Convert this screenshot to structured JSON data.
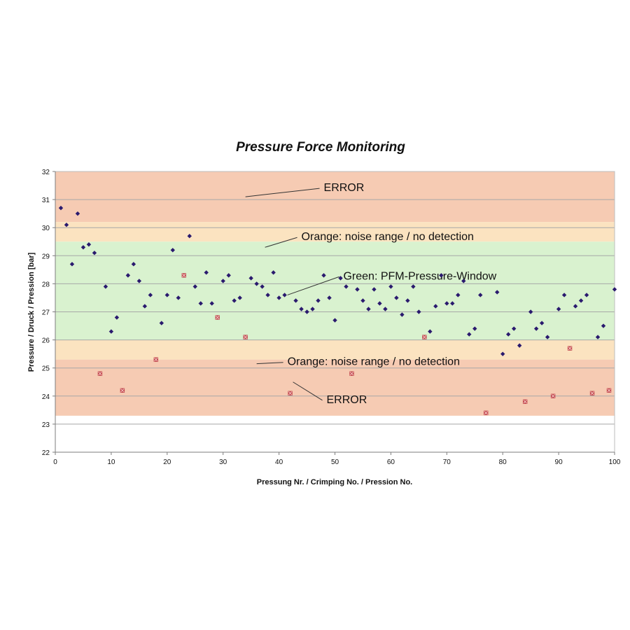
{
  "chart_data": {
    "type": "scatter",
    "title": "Pressure Force Monitoring",
    "xlabel": "Pressung Nr. / Crimping No. / Pression No.",
    "ylabel": "Pressure / Druck / Pression [bar]",
    "xlim": [
      0,
      100
    ],
    "ylim": [
      22,
      32
    ],
    "x_ticks": [
      0,
      10,
      20,
      30,
      40,
      50,
      60,
      70,
      80,
      90,
      100
    ],
    "y_ticks": [
      22,
      23,
      24,
      25,
      26,
      27,
      28,
      29,
      30,
      31,
      32
    ],
    "grid": true,
    "colors": {
      "ok_point": "#2a1a6e",
      "error_point": "#b8323c",
      "error_band": "#f6cbb3",
      "noise_band": "#fbe3c0",
      "window_band": "#d9f2cf",
      "plot_background": "#ffffff",
      "gridline": "#a8a8a8"
    },
    "bands": [
      {
        "name": "ERROR",
        "from": 30.2,
        "to": 32,
        "color": "#f6cbb3"
      },
      {
        "name": "Orange: noise range / no detection",
        "from": 29.5,
        "to": 30.2,
        "color": "#fbe3c0"
      },
      {
        "name": "Green: PFM-Pressure-Window",
        "from": 26,
        "to": 29.5,
        "color": "#d9f2cf"
      },
      {
        "name": "Orange: noise range / no detection",
        "from": 25.3,
        "to": 26,
        "color": "#fbe3c0"
      },
      {
        "name": "ERROR",
        "from": 23.3,
        "to": 25.3,
        "color": "#f6cbb3"
      }
    ],
    "annotations": [
      {
        "text": "ERROR",
        "at": [
          48,
          31.3
        ],
        "pointer_to": [
          34,
          31.1
        ]
      },
      {
        "text": "Orange:  noise range / no detection",
        "at": [
          44,
          29.55
        ],
        "pointer_to": [
          37.5,
          29.3
        ]
      },
      {
        "text": "Green: PFM-Pressure-Window",
        "at": [
          51.5,
          28.15
        ],
        "pointer_to": [
          41.5,
          27.6
        ]
      },
      {
        "text": "Orange:  noise range / no detection",
        "at": [
          41.5,
          25.1
        ],
        "pointer_to": [
          36,
          25.15
        ]
      },
      {
        "text": "ERROR",
        "at": [
          48.5,
          23.75
        ],
        "pointer_to": [
          42.5,
          24.5
        ]
      }
    ],
    "series": [
      {
        "marker": "diamond",
        "color": "#2a1a6e",
        "points": [
          [
            1,
            30.7
          ],
          [
            2,
            30.1
          ],
          [
            3,
            28.7
          ],
          [
            4,
            30.5
          ],
          [
            5,
            29.3
          ],
          [
            6,
            29.4
          ],
          [
            7,
            29.1
          ],
          [
            9,
            27.9
          ],
          [
            10,
            26.3
          ],
          [
            11,
            26.8
          ],
          [
            13,
            28.3
          ],
          [
            14,
            28.7
          ],
          [
            15,
            28.1
          ],
          [
            16,
            27.2
          ],
          [
            17,
            27.6
          ],
          [
            19,
            26.6
          ],
          [
            20,
            27.6
          ],
          [
            21,
            29.2
          ],
          [
            22,
            27.5
          ],
          [
            24,
            29.7
          ],
          [
            25,
            27.9
          ],
          [
            26,
            27.3
          ],
          [
            27,
            28.4
          ],
          [
            28,
            27.3
          ],
          [
            30,
            28.1
          ],
          [
            31,
            28.3
          ],
          [
            32,
            27.4
          ],
          [
            33,
            27.5
          ],
          [
            35,
            28.2
          ],
          [
            36,
            28.0
          ],
          [
            37,
            27.9
          ],
          [
            38,
            27.6
          ],
          [
            39,
            28.4
          ],
          [
            40,
            27.5
          ],
          [
            41,
            27.6
          ],
          [
            43,
            27.4
          ],
          [
            44,
            27.1
          ],
          [
            45,
            27.0
          ],
          [
            46,
            27.1
          ],
          [
            47,
            27.4
          ],
          [
            48,
            28.3
          ],
          [
            49,
            27.5
          ],
          [
            50,
            26.7
          ],
          [
            51,
            28.2
          ],
          [
            52,
            27.9
          ],
          [
            54,
            27.8
          ],
          [
            55,
            27.4
          ],
          [
            56,
            27.1
          ],
          [
            57,
            27.8
          ],
          [
            58,
            27.3
          ],
          [
            59,
            27.1
          ],
          [
            60,
            27.9
          ],
          [
            61,
            27.5
          ],
          [
            62,
            26.9
          ],
          [
            63,
            27.4
          ],
          [
            64,
            27.9
          ],
          [
            65,
            27.0
          ],
          [
            67,
            26.3
          ],
          [
            68,
            27.2
          ],
          [
            69,
            28.3
          ],
          [
            70,
            27.3
          ],
          [
            71,
            27.3
          ],
          [
            72,
            27.6
          ],
          [
            73,
            28.1
          ],
          [
            74,
            26.2
          ],
          [
            75,
            26.4
          ],
          [
            76,
            27.6
          ],
          [
            79,
            27.7
          ],
          [
            80,
            25.5
          ],
          [
            81,
            26.2
          ],
          [
            82,
            26.4
          ],
          [
            83,
            25.8
          ],
          [
            85,
            27.0
          ],
          [
            86,
            26.4
          ],
          [
            87,
            26.6
          ],
          [
            88,
            26.1
          ],
          [
            90,
            27.1
          ],
          [
            91,
            27.6
          ],
          [
            93,
            27.2
          ],
          [
            94,
            27.4
          ],
          [
            95,
            27.6
          ],
          [
            97,
            26.1
          ],
          [
            98,
            26.5
          ],
          [
            100,
            27.8
          ]
        ]
      },
      {
        "marker": "x-square",
        "color": "#b8323c",
        "points": [
          [
            8,
            24.8
          ],
          [
            12,
            24.2
          ],
          [
            18,
            25.3
          ],
          [
            23,
            28.3
          ],
          [
            29,
            26.8
          ],
          [
            34,
            26.1
          ],
          [
            42,
            24.1
          ],
          [
            53,
            24.8
          ],
          [
            66,
            26.1
          ],
          [
            77,
            23.4
          ],
          [
            84,
            23.8
          ],
          [
            89,
            24.0
          ],
          [
            92,
            25.7
          ],
          [
            96,
            24.1
          ],
          [
            99,
            24.2
          ]
        ]
      }
    ]
  }
}
